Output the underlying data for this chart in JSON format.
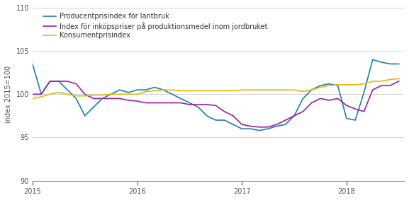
{
  "title": "",
  "ylabel": "index 2015=100",
  "ylim": [
    90,
    110
  ],
  "yticks": [
    90,
    95,
    100,
    105,
    110
  ],
  "line1_label": "Producentprisindex för lantbruk",
  "line2_label": "Index för inköpspriser på produktionsmedel inom jordbruket",
  "line3_label": "Konsumentprisindex",
  "line1_color": "#1e7db6",
  "line2_color": "#9b1f9e",
  "line3_color": "#e8b800",
  "background_color": "#ffffff",
  "grid_color": "#cccccc",
  "tick_label_color": "#555555",
  "xtick_years": [
    2015,
    2016,
    2017,
    2018
  ],
  "line1": [
    103.5,
    100.0,
    101.5,
    101.5,
    100.5,
    99.5,
    97.5,
    98.5,
    99.5,
    100.0,
    100.5,
    100.2,
    100.5,
    100.5,
    100.8,
    100.5,
    100.0,
    99.5,
    99.0,
    98.5,
    97.5,
    97.0,
    97.0,
    96.5,
    96.0,
    96.0,
    95.8,
    96.0,
    96.3,
    96.5,
    97.5,
    99.5,
    100.5,
    101.0,
    101.2,
    101.0,
    97.2,
    97.0,
    100.2,
    104.0,
    103.7,
    103.5,
    103.5
  ],
  "line2": [
    100.0,
    100.0,
    101.5,
    101.5,
    101.5,
    101.2,
    100.0,
    99.5,
    99.5,
    99.5,
    99.5,
    99.3,
    99.2,
    99.0,
    99.0,
    99.0,
    99.0,
    99.0,
    98.8,
    98.8,
    98.8,
    98.7,
    98.0,
    97.5,
    96.5,
    96.3,
    96.2,
    96.2,
    96.5,
    97.0,
    97.5,
    98.0,
    99.0,
    99.5,
    99.3,
    99.5,
    98.7,
    98.3,
    98.0,
    100.5,
    101.0,
    101.0,
    101.5
  ],
  "line3": [
    99.5,
    99.7,
    100.0,
    100.2,
    100.0,
    99.8,
    99.8,
    99.9,
    99.9,
    100.0,
    100.0,
    100.0,
    100.0,
    100.3,
    100.4,
    100.5,
    100.5,
    100.4,
    100.4,
    100.4,
    100.4,
    100.4,
    100.4,
    100.4,
    100.5,
    100.5,
    100.5,
    100.5,
    100.5,
    100.5,
    100.5,
    100.3,
    100.5,
    100.8,
    101.0,
    101.1,
    101.1,
    101.1,
    101.2,
    101.5,
    101.5,
    101.7,
    101.8
  ],
  "legend_fontsize": 7,
  "axis_fontsize": 7,
  "linewidth": 1.2
}
